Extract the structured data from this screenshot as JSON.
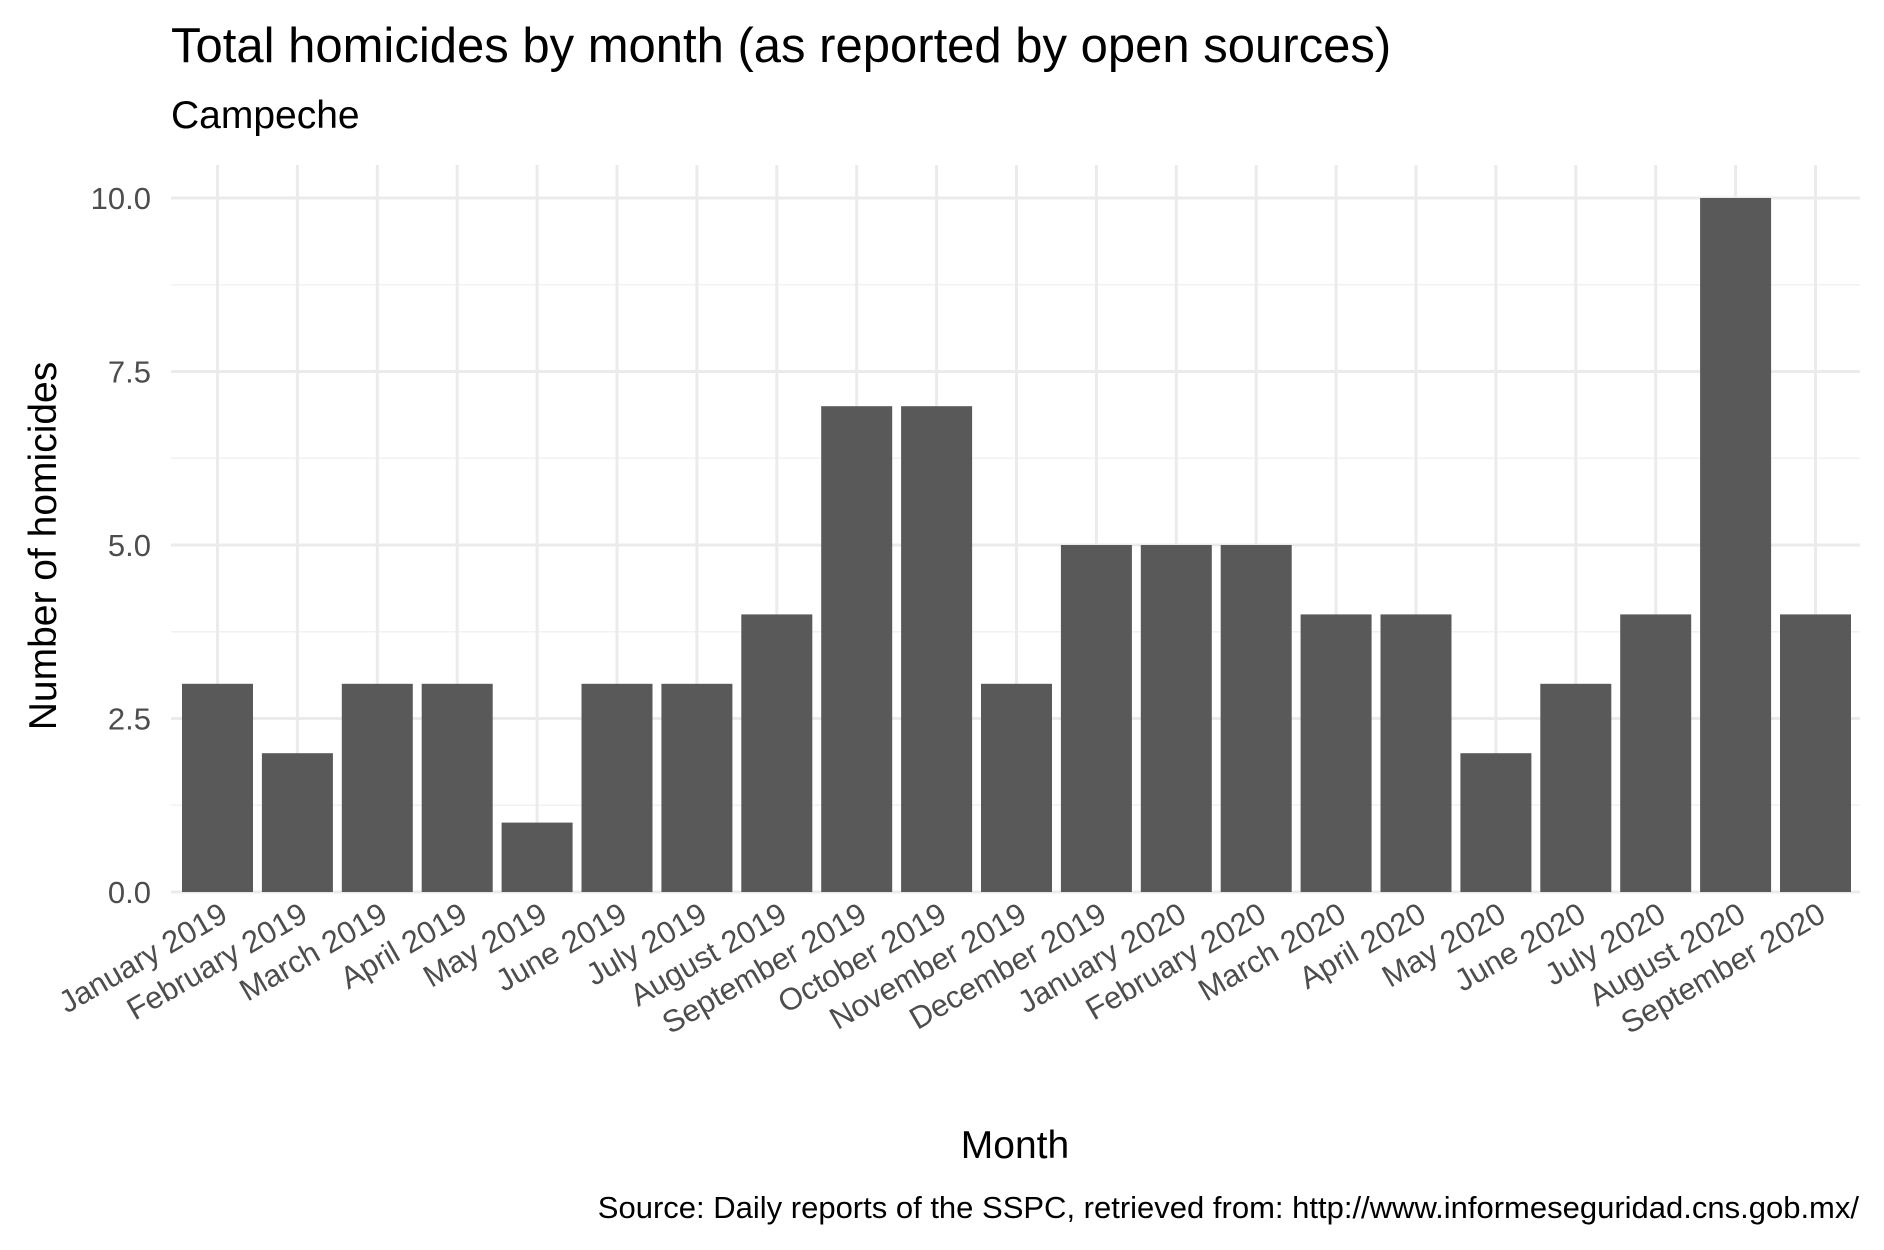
{
  "chart_data": {
    "type": "bar",
    "title": "Total homicides by month (as reported by open sources)",
    "subtitle": "Campeche",
    "xlabel": "Month",
    "ylabel": "Number of homicides",
    "caption": "Source: Daily reports of the SSPC, retrieved from: http://www.informeseguridad.cns.gob.mx/",
    "categories": [
      "January 2019",
      "February 2019",
      "March 2019",
      "April 2019",
      "May 2019",
      "June 2019",
      "July 2019",
      "August 2019",
      "September 2019",
      "October 2019",
      "November 2019",
      "December 2019",
      "January 2020",
      "February 2020",
      "March 2020",
      "April 2020",
      "May 2020",
      "June 2020",
      "July 2020",
      "August 2020",
      "September 2020"
    ],
    "values": [
      3,
      2,
      3,
      3,
      1,
      3,
      3,
      4,
      7,
      7,
      3,
      5,
      5,
      5,
      4,
      4,
      2,
      3,
      4,
      10,
      4
    ],
    "ylim": [
      0,
      10
    ],
    "y_ticks": [
      "0.0",
      "2.5",
      "5.0",
      "7.5",
      "10.0"
    ],
    "grid": true,
    "bar_color": "#595959"
  }
}
